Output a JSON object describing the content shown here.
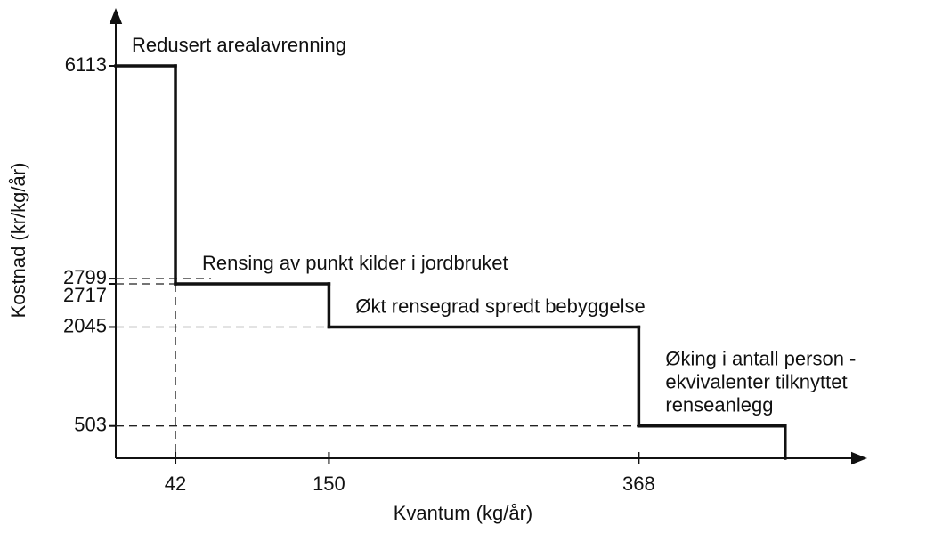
{
  "chart_data": {
    "type": "step",
    "xlabel": "Kvantum (kg/år)",
    "ylabel": "Kostnad (kr/kg/år)",
    "x_edges": [
      0,
      42,
      150,
      368,
      471
    ],
    "values": [
      6113,
      2717,
      2045,
      503
    ],
    "annotations": [
      [
        "Redusert arealavrenning"
      ],
      [
        "Rensing av punkt kilder i jordbruket"
      ],
      [
        "Økt rensegrad spredt bebyggelse"
      ],
      [
        "Øking i antall person -",
        "ekvivalenter tilknyttet",
        "renseanlegg"
      ]
    ],
    "xlim": [
      0,
      520
    ],
    "xticks": [
      42,
      150,
      368
    ],
    "ylim": [
      0,
      7000
    ],
    "yticks": [
      6113,
      2799,
      2717,
      2045,
      503
    ],
    "color": "#111111"
  }
}
